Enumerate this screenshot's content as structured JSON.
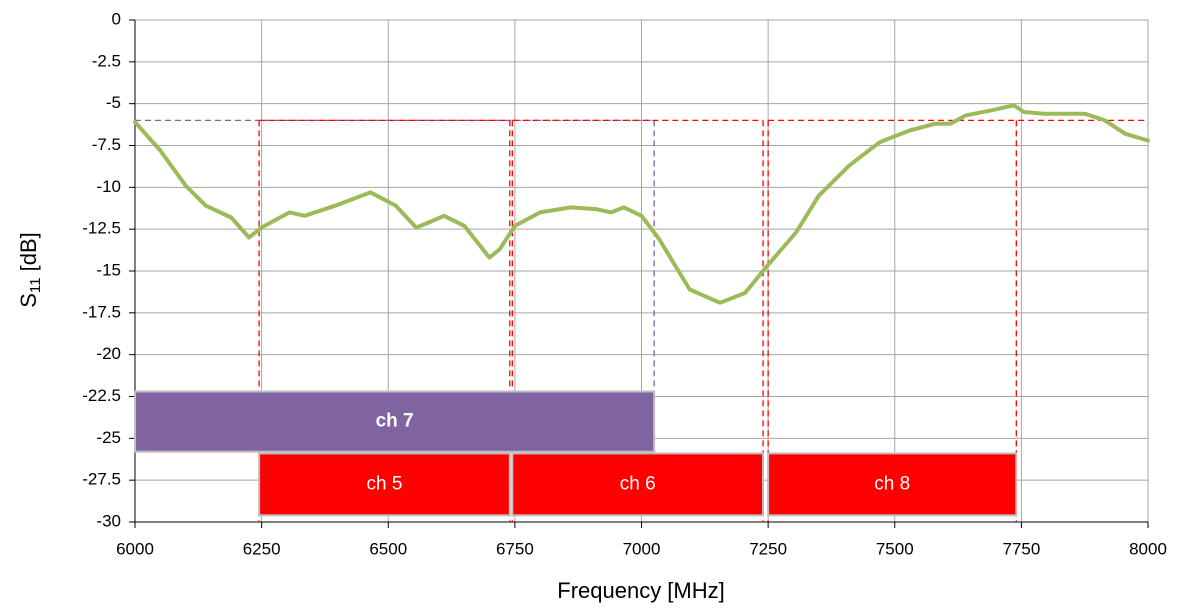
{
  "chart_data": {
    "type": "line",
    "x_label": "Frequency [MHz]",
    "y_label": {
      "base": "S",
      "subscript": "11",
      "unit": " [dB]"
    },
    "xlim": [
      6000,
      8000
    ],
    "xticks": [
      6000,
      6250,
      6500,
      6750,
      7000,
      7250,
      7500,
      7750,
      8000
    ],
    "ylim": [
      -30,
      0
    ],
    "yticks": [
      0,
      -2.5,
      -5,
      -7.5,
      -10,
      -12.5,
      -15,
      -17.5,
      -20,
      -22.5,
      -25,
      -27.5,
      -30
    ],
    "grid": true,
    "x": [
      6000,
      6050,
      6100,
      6140,
      6190,
      6225,
      6250,
      6305,
      6335,
      6395,
      6465,
      6515,
      6555,
      6580,
      6610,
      6650,
      6700,
      6720,
      6750,
      6800,
      6860,
      6910,
      6940,
      6965,
      7000,
      7035,
      7095,
      7155,
      7205,
      7245,
      7305,
      7350,
      7410,
      7470,
      7530,
      7580,
      7610,
      7640,
      7690,
      7735,
      7755,
      7795,
      7835,
      7875,
      7915,
      7955,
      8000
    ],
    "series": [
      {
        "name": "S11",
        "color": "#9bbb59",
        "values": [
          -6.1,
          -7.8,
          -9.9,
          -11.1,
          -11.8,
          -13.0,
          -12.4,
          -11.5,
          -11.7,
          -11.1,
          -10.3,
          -11.1,
          -12.4,
          -12.1,
          -11.7,
          -12.3,
          -14.2,
          -13.7,
          -12.3,
          -11.5,
          -11.2,
          -11.3,
          -11.5,
          -11.2,
          -11.7,
          -13.1,
          -16.1,
          -16.9,
          -16.3,
          -14.8,
          -12.7,
          -10.5,
          -8.7,
          -7.3,
          -6.6,
          -6.2,
          -6.2,
          -5.7,
          -5.4,
          -5.1,
          -5.5,
          -5.6,
          -5.6,
          -5.6,
          -6.0,
          -6.8,
          -7.2
        ]
      }
    ],
    "threshold": -6,
    "bands": [
      {
        "label": "ch 7",
        "start": 6000,
        "end": 7025,
        "top": -22.2,
        "bottom": -25.8,
        "color": "#8064a2",
        "bold": true
      },
      {
        "label": "ch 5",
        "start": 6245,
        "end": 6740,
        "top": -25.9,
        "bottom": -29.6,
        "color": "#ff0000",
        "bold": false
      },
      {
        "label": "ch 6",
        "start": 6745,
        "end": 7240,
        "top": -25.9,
        "bottom": -29.6,
        "color": "#ff0000",
        "bold": false
      },
      {
        "label": "ch 8",
        "start": 7250,
        "end": 7740,
        "top": -25.9,
        "bottom": -29.6,
        "color": "#ff0000",
        "bold": false
      }
    ]
  }
}
